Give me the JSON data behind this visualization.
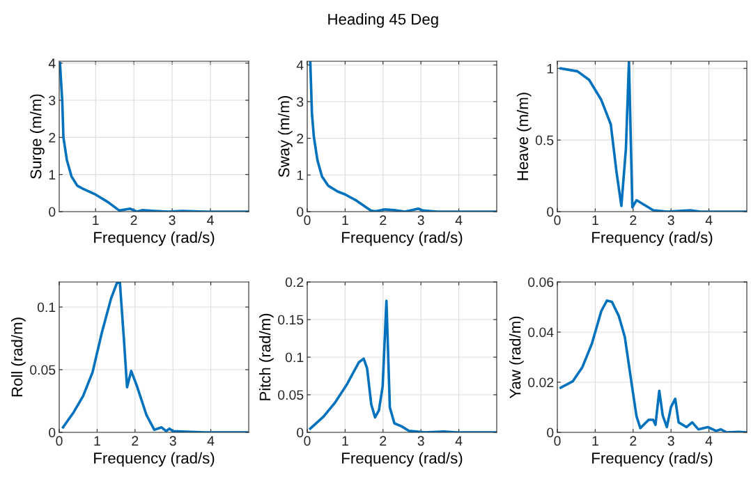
{
  "chart_data": [
    {
      "type": "line",
      "xlabel": "Frequency (rad/s)",
      "ylabel": "Surge (m/m)",
      "xlim": [
        0.05,
        5
      ],
      "xticks": [
        1,
        2,
        3,
        4
      ],
      "ylim": [
        0,
        4.05
      ],
      "yticks": [
        0,
        1,
        2,
        3,
        4
      ],
      "grid": true,
      "series": [
        {
          "color": "#0072bd",
          "x": [
            0.07,
            0.13,
            0.16,
            0.25,
            0.37,
            0.52,
            0.68,
            1.0,
            1.32,
            1.62,
            1.9,
            2.08,
            2.23,
            2.54,
            2.9,
            3.27,
            3.88,
            5
          ],
          "values": [
            4.0,
            2.96,
            2.0,
            1.39,
            0.95,
            0.7,
            0.61,
            0.46,
            0.26,
            0.03,
            0.08,
            0,
            0.04,
            0.02,
            0,
            0.02,
            0,
            0
          ]
        }
      ]
    },
    {
      "type": "line",
      "title": "Heading 45 Deg",
      "xlabel": "Frequency (rad/s)",
      "ylabel": "Sway (m/m)",
      "xlim": [
        0,
        5
      ],
      "xticks": [
        0,
        1,
        2,
        3,
        4
      ],
      "ylim": [
        0,
        4.1
      ],
      "yticks": [
        0,
        1,
        2,
        3,
        4
      ],
      "grid": true,
      "series": [
        {
          "color": "#0072bd",
          "x": [
            0.08,
            0.125,
            0.175,
            0.27,
            0.39,
            0.55,
            0.8,
            1.0,
            1.3,
            1.68,
            1.8,
            2.05,
            2.3,
            2.58,
            2.93,
            3.05,
            3.43,
            4.99
          ],
          "values": [
            4.1,
            2.67,
            2.04,
            1.4,
            0.96,
            0.71,
            0.55,
            0.47,
            0.3,
            0.03,
            0.01,
            0.06,
            0.04,
            0,
            0.08,
            0.03,
            0,
            0
          ]
        }
      ]
    },
    {
      "type": "line",
      "xlabel": "Frequency (rad/s)",
      "ylabel": "Heave (m/m)",
      "xlim": [
        0,
        5
      ],
      "xticks": [
        0,
        1,
        2,
        3,
        4
      ],
      "ylim": [
        0,
        1.05
      ],
      "yticks": [
        0,
        0.5,
        1
      ],
      "grid": true,
      "series": [
        {
          "color": "#0072bd",
          "x": [
            0.09,
            0.53,
            0.84,
            1.16,
            1.41,
            1.56,
            1.69,
            1.81,
            1.89,
            1.98,
            2.09,
            2.28,
            2.53,
            2.9,
            3.5,
            3.78,
            5
          ],
          "values": [
            1.0,
            0.98,
            0.92,
            0.78,
            0.61,
            0.28,
            0.04,
            0.44,
            1.05,
            0.03,
            0.08,
            0.05,
            0.01,
            0,
            0.01,
            0,
            0
          ]
        }
      ]
    },
    {
      "type": "line",
      "xlabel": "Frequency (rad/s)",
      "ylabel": "Roll (rad/m)",
      "xlim": [
        0,
        5
      ],
      "xticks": [
        0,
        1,
        2,
        3,
        4
      ],
      "ylim": [
        0,
        0.12
      ],
      "yticks": [
        0,
        0.05,
        0.1
      ],
      "grid": true,
      "series": [
        {
          "color": "#0072bd",
          "x": [
            0.1,
            0.38,
            0.63,
            0.88,
            1.12,
            1.37,
            1.52,
            1.6,
            1.71,
            1.79,
            1.9,
            2.05,
            2.3,
            2.51,
            2.7,
            2.82,
            2.91,
            3.0,
            3.35,
            3.84,
            4.95
          ],
          "values": [
            0.004,
            0.016,
            0.029,
            0.048,
            0.079,
            0.107,
            0.119,
            0.12,
            0.073,
            0.036,
            0.049,
            0.037,
            0.014,
            0.002,
            0.004,
            0.001,
            0.003,
            0.001,
            0.0005,
            0,
            0
          ]
        }
      ]
    },
    {
      "type": "line",
      "xlabel": "Frequency (rad/s)",
      "ylabel": "Pitch (rad/m)",
      "xlim": [
        0,
        5
      ],
      "xticks": [
        0,
        1,
        2,
        3,
        4
      ],
      "ylim": [
        0,
        0.2
      ],
      "yticks": [
        0,
        0.05,
        0.1,
        0.15,
        0.2
      ],
      "grid": true,
      "series": [
        {
          "color": "#0072bd",
          "x": [
            0.08,
            0.43,
            0.74,
            1.05,
            1.36,
            1.49,
            1.58,
            1.69,
            1.79,
            1.89,
            1.99,
            2.09,
            2.18,
            2.3,
            2.49,
            2.68,
            3.11,
            3.61,
            3.93,
            4.99
          ],
          "values": [
            0.005,
            0.021,
            0.04,
            0.064,
            0.093,
            0.098,
            0.085,
            0.037,
            0.02,
            0.029,
            0.061,
            0.175,
            0.033,
            0.012,
            0.008,
            0.002,
            0,
            0.001,
            0,
            0
          ]
        }
      ]
    },
    {
      "type": "line",
      "xlabel": "Frequency (rad/s)",
      "ylabel": "Yaw (rad/m)",
      "xlim": [
        0,
        5
      ],
      "xticks": [
        0,
        1,
        2,
        3,
        4
      ],
      "ylim": [
        0,
        0.06
      ],
      "yticks": [
        0,
        0.02,
        0.04,
        0.06
      ],
      "grid": true,
      "series": [
        {
          "color": "#0072bd",
          "x": [
            0.09,
            0.41,
            0.66,
            0.91,
            1.16,
            1.31,
            1.44,
            1.62,
            1.78,
            1.97,
            2.09,
            2.19,
            2.41,
            2.53,
            2.59,
            2.69,
            2.78,
            2.89,
            3.0,
            3.11,
            3.2,
            3.41,
            3.56,
            3.72,
            3.97,
            4.19,
            4.31,
            4.47,
            4.78,
            5
          ],
          "values": [
            0.0178,
            0.0204,
            0.026,
            0.0353,
            0.0484,
            0.0526,
            0.0521,
            0.0465,
            0.0381,
            0.0185,
            0.0064,
            0.0017,
            0.005,
            0.005,
            0.003,
            0.0166,
            0.0068,
            0.0021,
            0.0101,
            0.0134,
            0.004,
            0.0021,
            0.004,
            0.0012,
            0.0021,
            0.0006,
            0.0012,
            0,
            0.0002,
            0
          ]
        }
      ]
    }
  ]
}
